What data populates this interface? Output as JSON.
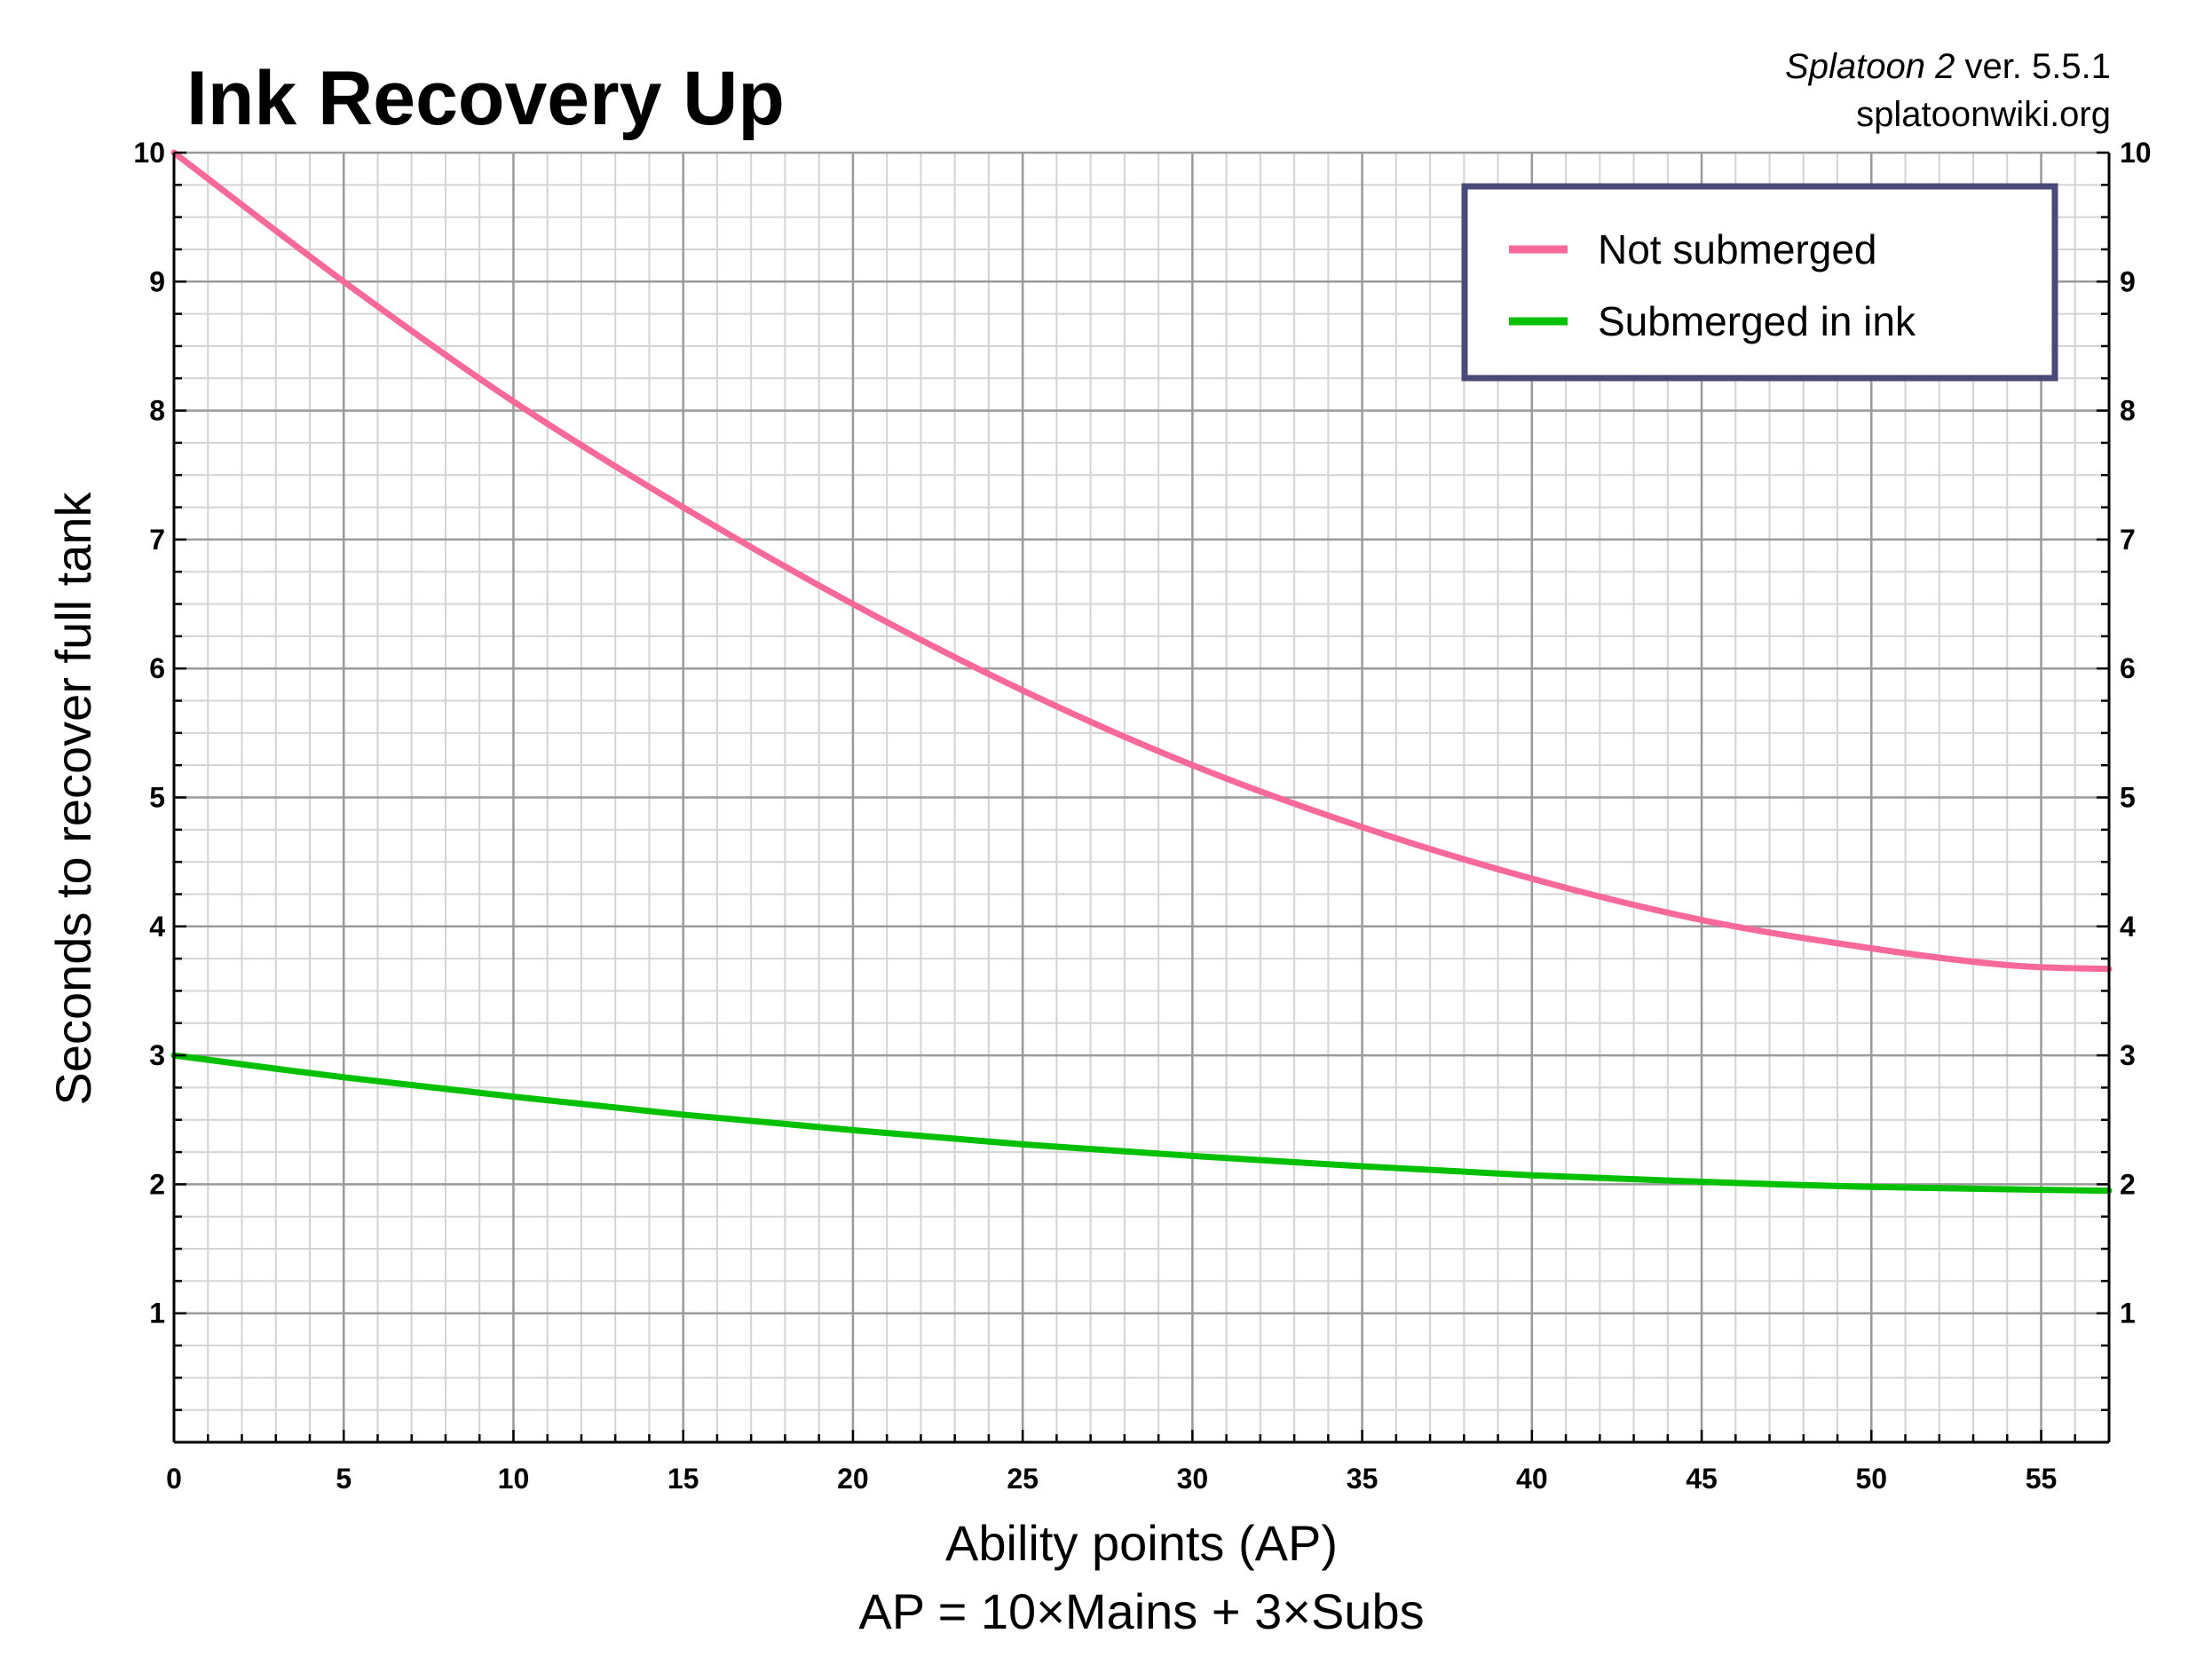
{
  "chart_data": {
    "type": "line",
    "title": "Ink Recovery Up",
    "subtitle_game": "Splatoon 2",
    "subtitle_version": " ver. 5.5.1",
    "source": "splatoonwiki.org",
    "xlabel": "Ability points (AP)",
    "xlabel2": "AP = 10×Mains + 3×Subs",
    "ylabel": "Seconds to recover full tank",
    "xlim": [
      0,
      57
    ],
    "ylim": [
      0,
      10
    ],
    "xticks": [
      0,
      5,
      10,
      15,
      20,
      25,
      30,
      35,
      40,
      45,
      50,
      55
    ],
    "yticks": [
      1,
      2,
      3,
      4,
      5,
      6,
      7,
      8,
      9,
      10
    ],
    "grid": true,
    "legend_position": "top-right",
    "series": [
      {
        "name": "Not submerged",
        "color": "#f7689b",
        "x": [
          0,
          5,
          10,
          15,
          20,
          25,
          30,
          35,
          40,
          45,
          50,
          54,
          57
        ],
        "y": [
          10,
          9.0,
          8.07,
          7.25,
          6.5,
          5.83,
          5.25,
          4.77,
          4.37,
          4.05,
          3.83,
          3.7,
          3.67
        ]
      },
      {
        "name": "Submerged in ink",
        "color": "#00c000",
        "x": [
          0,
          5,
          10,
          15,
          20,
          25,
          30,
          35,
          40,
          45,
          50,
          57
        ],
        "y": [
          3.0,
          2.83,
          2.68,
          2.54,
          2.42,
          2.31,
          2.22,
          2.14,
          2.07,
          2.02,
          1.98,
          1.95
        ]
      }
    ]
  }
}
